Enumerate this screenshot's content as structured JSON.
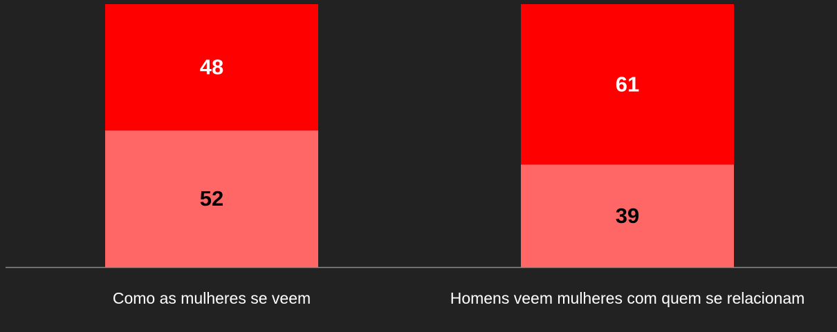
{
  "chart_data": {
    "type": "stacked_bar",
    "categories": [
      "Como as mulheres se veem",
      "Homens veem mulheres com quem se relacionam"
    ],
    "series": [
      {
        "color": "#ff6666",
        "label_color": "#000000",
        "values": [
          52,
          39
        ]
      },
      {
        "color": "#ff0000",
        "label_color": "#ffffff",
        "values": [
          48,
          61
        ]
      }
    ],
    "ylim": [
      0,
      100
    ],
    "background": "#222222",
    "axis_color": "#8c8c8c"
  }
}
